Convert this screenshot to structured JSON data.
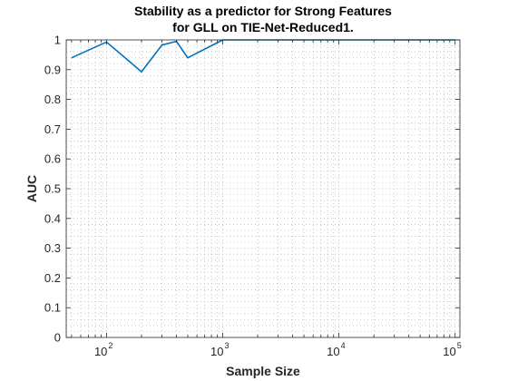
{
  "chart_data": {
    "type": "line",
    "title": [
      "Stability as a predictor for Strong Features",
      "for GLL on TIE-Net-Reduced1."
    ],
    "xlabel": "Sample Size",
    "ylabel": "AUC",
    "x_scale": "log",
    "xlim": [
      45,
      110000
    ],
    "ylim": [
      0,
      1
    ],
    "grid": "minor-dotted",
    "x_ticks": [
      {
        "value": 100,
        "base": "10",
        "exp": "2"
      },
      {
        "value": 1000,
        "base": "10",
        "exp": "3"
      },
      {
        "value": 10000,
        "base": "10",
        "exp": "4"
      },
      {
        "value": 100000,
        "base": "10",
        "exp": "5"
      }
    ],
    "y_ticks": [
      "0",
      "0.1",
      "0.2",
      "0.3",
      "0.4",
      "0.5",
      "0.6",
      "0.7",
      "0.8",
      "0.9",
      "1"
    ],
    "line_color": "#0072BD",
    "series": [
      {
        "x": [
          50,
          100,
          200,
          300,
          400,
          500,
          1000,
          2000,
          5000,
          10000,
          20000,
          50000,
          100000
        ],
        "y": [
          0.94,
          0.993,
          0.893,
          0.983,
          0.995,
          0.94,
          1.0,
          1.0,
          1.0,
          1.0,
          1.0,
          1.0,
          1.0
        ]
      }
    ]
  }
}
